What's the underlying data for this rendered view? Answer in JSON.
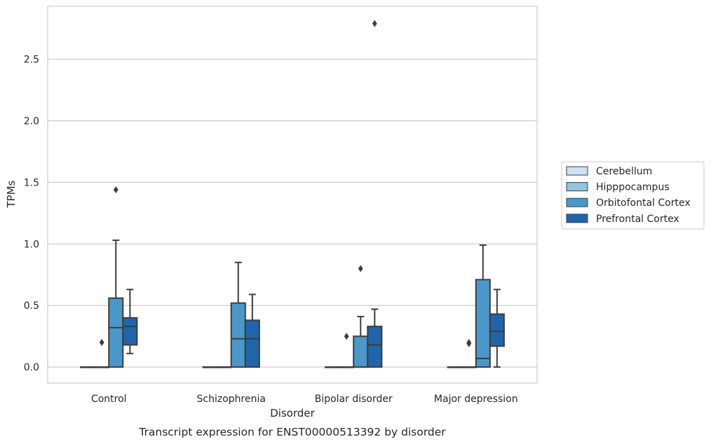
{
  "chart_data": {
    "type": "box",
    "title": "",
    "caption": "Transcript expression for ENST00000513392 by disorder",
    "xlabel": "Disorder",
    "ylabel": "TPMs",
    "ylim": [
      -0.13,
      2.93
    ],
    "yticks": [
      0.0,
      0.5,
      1.0,
      1.5,
      2.0,
      2.5
    ],
    "ytick_labels": [
      "0.0",
      "0.5",
      "1.0",
      "1.5",
      "2.0",
      "2.5"
    ],
    "grid": "horizontal",
    "legend_position": "right",
    "categories": [
      "Control",
      "Schizophrenia",
      "Bipolar disorder",
      "Major depression"
    ],
    "series": [
      {
        "name": "Cerebellum",
        "color": "#cfe1f2",
        "boxes": [
          {
            "q1": 0.0,
            "median": 0.0,
            "q3": 0.0,
            "whisker_low": 0.0,
            "whisker_high": 0.0,
            "outliers": []
          },
          {
            "q1": 0.0,
            "median": 0.0,
            "q3": 0.0,
            "whisker_low": 0.0,
            "whisker_high": 0.0,
            "outliers": []
          },
          {
            "q1": 0.0,
            "median": 0.0,
            "q3": 0.0,
            "whisker_low": 0.0,
            "whisker_high": 0.0,
            "outliers": []
          },
          {
            "q1": 0.0,
            "median": 0.0,
            "q3": 0.0,
            "whisker_low": 0.0,
            "whisker_high": 0.0,
            "outliers": []
          }
        ]
      },
      {
        "name": "Hipppocampus",
        "color": "#93c4de",
        "boxes": [
          {
            "q1": 0.0,
            "median": 0.0,
            "q3": 0.0,
            "whisker_low": 0.0,
            "whisker_high": 0.0,
            "outliers": [
              0.2
            ]
          },
          {
            "q1": 0.0,
            "median": 0.0,
            "q3": 0.0,
            "whisker_low": 0.0,
            "whisker_high": 0.0,
            "outliers": []
          },
          {
            "q1": 0.0,
            "median": 0.0,
            "q3": 0.0,
            "whisker_low": 0.0,
            "whisker_high": 0.0,
            "outliers": [
              0.25
            ]
          },
          {
            "q1": 0.0,
            "median": 0.0,
            "q3": 0.0,
            "whisker_low": 0.0,
            "whisker_high": 0.0,
            "outliers": [
              0.19,
              0.2
            ]
          }
        ]
      },
      {
        "name": "Orbitofontal Cortex",
        "color": "#4a98c9",
        "boxes": [
          {
            "q1": 0.0,
            "median": 0.32,
            "q3": 0.56,
            "whisker_low": 0.0,
            "whisker_high": 1.03,
            "outliers": [
              1.44
            ]
          },
          {
            "q1": 0.0,
            "median": 0.23,
            "q3": 0.52,
            "whisker_low": 0.0,
            "whisker_high": 0.85,
            "outliers": []
          },
          {
            "q1": 0.0,
            "median": 0.0,
            "q3": 0.25,
            "whisker_low": 0.0,
            "whisker_high": 0.41,
            "outliers": [
              0.8
            ]
          },
          {
            "q1": 0.0,
            "median": 0.07,
            "q3": 0.71,
            "whisker_low": 0.0,
            "whisker_high": 0.99,
            "outliers": []
          }
        ]
      },
      {
        "name": "Prefrontal Cortex",
        "color": "#2065ab",
        "boxes": [
          {
            "q1": 0.18,
            "median": 0.33,
            "q3": 0.4,
            "whisker_low": 0.11,
            "whisker_high": 0.63,
            "outliers": []
          },
          {
            "q1": 0.0,
            "median": 0.23,
            "q3": 0.38,
            "whisker_low": 0.0,
            "whisker_high": 0.59,
            "outliers": []
          },
          {
            "q1": 0.0,
            "median": 0.18,
            "q3": 0.33,
            "whisker_low": 0.0,
            "whisker_high": 0.47,
            "outliers": [
              2.79
            ]
          },
          {
            "q1": 0.17,
            "median": 0.29,
            "q3": 0.43,
            "whisker_low": 0.0,
            "whisker_high": 0.63,
            "outliers": []
          }
        ]
      }
    ]
  }
}
